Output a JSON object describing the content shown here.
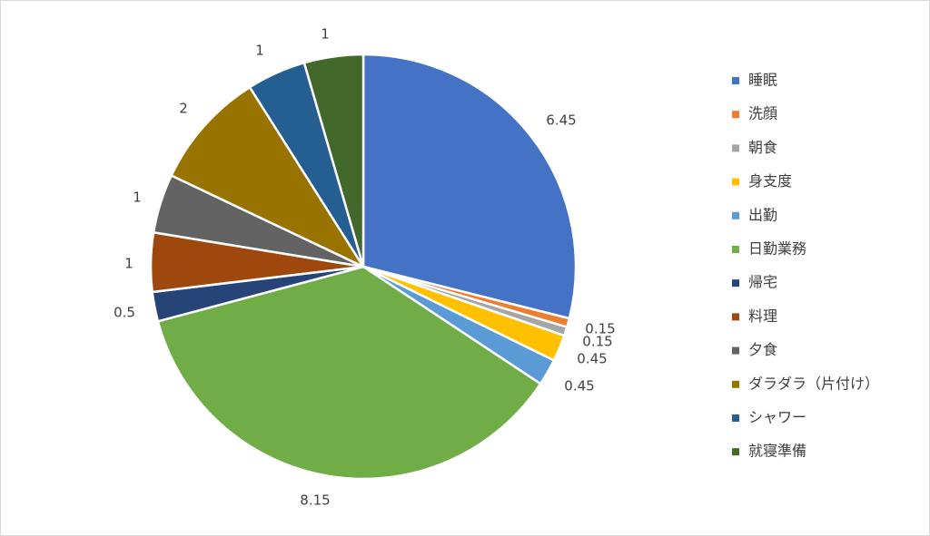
{
  "chart_data": {
    "type": "pie",
    "title": "",
    "legend_position": "right",
    "categories": [
      "睡眠",
      "洗顔",
      "朝食",
      "身支度",
      "出勤",
      "日勤業務",
      "帰宅",
      "料理",
      "夕食",
      "ダラダラ（片付け）",
      "シャワー",
      "就寝準備"
    ],
    "values": [
      6.45,
      0.15,
      0.15,
      0.45,
      0.45,
      8.15,
      0.5,
      1,
      1,
      2,
      1,
      1
    ],
    "data_labels": [
      "6.45",
      "0.15",
      "0.15",
      "0.45",
      "0.45",
      "8.15",
      "0.5",
      "1",
      "1",
      "2",
      "1",
      "1"
    ],
    "colors": [
      "#4472c4",
      "#ed7d31",
      "#a5a5a5",
      "#ffc000",
      "#5b9bd5",
      "#70ad47",
      "#264478",
      "#9e480e",
      "#636363",
      "#997300",
      "#255e91",
      "#43682b"
    ]
  }
}
